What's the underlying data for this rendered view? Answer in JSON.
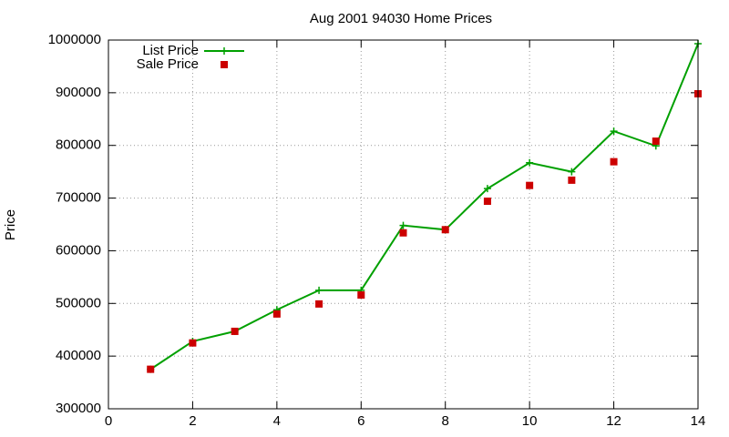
{
  "chart_data": {
    "type": "line",
    "title": "Aug 2001 94030 Home Prices",
    "y_label": "Price",
    "x": [
      1,
      2,
      3,
      4,
      5,
      6,
      7,
      8,
      9,
      10,
      11,
      12,
      13,
      14
    ],
    "series": [
      {
        "name": "List Price",
        "color": "#00a000",
        "style": "linespoints",
        "values": [
          375000,
          428000,
          447000,
          488000,
          525000,
          525000,
          648000,
          640000,
          718000,
          767000,
          750000,
          827000,
          799000,
          993000
        ]
      },
      {
        "name": "Sale Price",
        "color": "#cc0000",
        "style": "points",
        "values": [
          375000,
          425000,
          447000,
          480000,
          499000,
          516000,
          634000,
          640000,
          694000,
          724000,
          734000,
          769000,
          808000,
          898000
        ]
      }
    ],
    "xlim": [
      0,
      14
    ],
    "xticks": [
      0,
      2,
      4,
      6,
      8,
      10,
      12,
      14
    ],
    "ylim": [
      300000,
      1000000
    ],
    "yticks": [
      300000,
      400000,
      500000,
      600000,
      700000,
      800000,
      900000,
      1000000
    ],
    "grid": true,
    "legend_position": "top-left"
  }
}
